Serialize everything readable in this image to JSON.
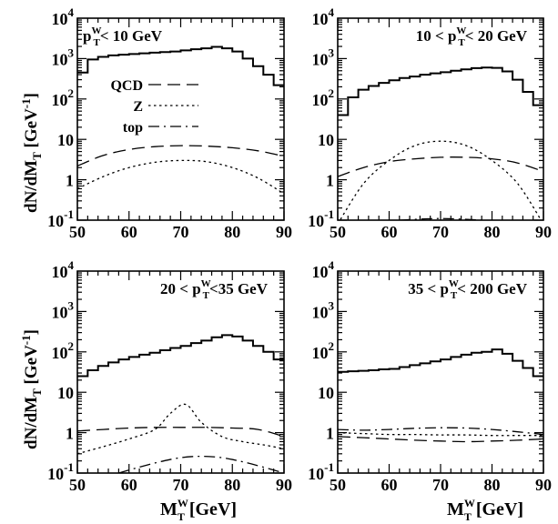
{
  "ylabel": "dN/dM",
  "ylabel_sub": "T",
  "ylabel_unit": "[GeV",
  "ylabel_unit_exp": "-1",
  "ylabel_unit_close": "]",
  "xlabel": "M",
  "xlabel_sup": "W",
  "xlabel_sub": "T",
  "xlabel_unit": "[GeV]",
  "legend": {
    "qcd": "QCD",
    "z": "Z",
    "top": "top"
  },
  "chart_data": [
    {
      "type": "line",
      "title_parts": [
        "p",
        "W",
        "T",
        "< 10 GeV"
      ],
      "xlim": [
        50,
        90
      ],
      "ylim": [
        0.1,
        10000
      ],
      "yscale": "log",
      "xticks": [
        50,
        60,
        70,
        80,
        90
      ],
      "yticks": [
        {
          "v": 10000,
          "b": "10",
          "e": "4"
        },
        {
          "v": 1000,
          "b": "10",
          "e": "3"
        },
        {
          "v": 100,
          "b": "10",
          "e": "2"
        },
        {
          "v": 10,
          "b": "10",
          "e": ""
        },
        {
          "v": 1,
          "b": "1",
          "e": ""
        },
        {
          "v": 0.1,
          "b": "10",
          "e": "-1"
        }
      ],
      "series": [
        {
          "key": "data",
          "style": "hist",
          "bin_edges": [
            50,
            52,
            54,
            56,
            58,
            60,
            62,
            64,
            66,
            68,
            70,
            72,
            74,
            76,
            78,
            80,
            82,
            84,
            86,
            88,
            90
          ],
          "values": [
            450,
            950,
            1100,
            1200,
            1250,
            1300,
            1350,
            1400,
            1450,
            1500,
            1600,
            1700,
            1800,
            1950,
            1800,
            1500,
            1000,
            650,
            400,
            220
          ]
        },
        {
          "key": "qcd",
          "style": "qcd",
          "x": [
            50,
            55,
            60,
            65,
            70,
            75,
            80,
            85,
            90
          ],
          "y": [
            2.2,
            4.0,
            5.6,
            6.6,
            7.0,
            6.8,
            6.2,
            5.2,
            3.8
          ]
        },
        {
          "key": "z",
          "style": "z",
          "x": [
            50,
            55,
            60,
            65,
            70,
            75,
            80,
            85,
            90
          ],
          "y": [
            0.6,
            1.2,
            2.0,
            2.7,
            3.0,
            2.8,
            2.0,
            1.1,
            0.45
          ]
        }
      ]
    },
    {
      "type": "line",
      "title_parts": [
        "10 < p",
        "W",
        "T",
        "< 20 GeV"
      ],
      "xlim": [
        50,
        90
      ],
      "ylim": [
        0.1,
        10000
      ],
      "yscale": "log",
      "xticks": [
        50,
        60,
        70,
        80,
        90
      ],
      "yticks": [
        {
          "v": 10000,
          "b": "10",
          "e": "4"
        },
        {
          "v": 1000,
          "b": "10",
          "e": "3"
        },
        {
          "v": 100,
          "b": "10",
          "e": "2"
        },
        {
          "v": 10,
          "b": "10",
          "e": ""
        },
        {
          "v": 1,
          "b": "1",
          "e": ""
        },
        {
          "v": 0.1,
          "b": "10",
          "e": "-1"
        }
      ],
      "series": [
        {
          "key": "data",
          "style": "hist",
          "bin_edges": [
            50,
            52,
            54,
            56,
            58,
            60,
            62,
            64,
            66,
            68,
            70,
            72,
            74,
            76,
            78,
            80,
            82,
            84,
            86,
            88,
            90
          ],
          "values": [
            40,
            110,
            170,
            210,
            250,
            290,
            330,
            360,
            400,
            430,
            460,
            500,
            540,
            580,
            600,
            590,
            480,
            300,
            150,
            70
          ]
        },
        {
          "key": "qcd",
          "style": "qcd",
          "x": [
            50,
            55,
            60,
            65,
            70,
            75,
            80,
            85,
            90
          ],
          "y": [
            1.2,
            2.0,
            2.8,
            3.3,
            3.6,
            3.6,
            3.3,
            2.6,
            1.6
          ]
        },
        {
          "key": "z",
          "style": "z",
          "x": [
            50,
            55,
            60,
            65,
            70,
            75,
            80,
            85,
            90
          ],
          "y": [
            0.08,
            0.8,
            3.0,
            7.0,
            9.0,
            7.0,
            3.0,
            0.8,
            0.08
          ]
        },
        {
          "key": "top",
          "style": "top",
          "x": [
            62,
            70,
            78
          ],
          "y": [
            0.1,
            0.11,
            0.1
          ]
        }
      ]
    },
    {
      "type": "line",
      "title_parts": [
        "20  < p",
        "W",
        "T",
        "<35 GeV"
      ],
      "xlim": [
        50,
        90
      ],
      "ylim": [
        0.1,
        10000
      ],
      "yscale": "log",
      "xticks": [
        50,
        60,
        70,
        80,
        90
      ],
      "yticks": [
        {
          "v": 10000,
          "b": "10",
          "e": "4"
        },
        {
          "v": 1000,
          "b": "10",
          "e": "3"
        },
        {
          "v": 100,
          "b": "10",
          "e": "2"
        },
        {
          "v": 10,
          "b": "10",
          "e": ""
        },
        {
          "v": 1,
          "b": "1",
          "e": ""
        },
        {
          "v": 0.1,
          "b": "10",
          "e": "-1"
        }
      ],
      "series": [
        {
          "key": "data",
          "style": "hist",
          "bin_edges": [
            50,
            52,
            54,
            56,
            58,
            60,
            62,
            64,
            66,
            68,
            70,
            72,
            74,
            76,
            78,
            80,
            82,
            84,
            86,
            88,
            90
          ],
          "values": [
            25,
            35,
            45,
            55,
            65,
            75,
            85,
            95,
            110,
            125,
            140,
            165,
            190,
            230,
            260,
            240,
            190,
            140,
            100,
            65
          ]
        },
        {
          "key": "qcd",
          "style": "qcd",
          "x": [
            50,
            55,
            60,
            65,
            70,
            75,
            80,
            85,
            90
          ],
          "y": [
            1.1,
            1.2,
            1.3,
            1.35,
            1.35,
            1.35,
            1.3,
            1.2,
            0.8
          ]
        },
        {
          "key": "z",
          "style": "z",
          "x": [
            50,
            55,
            60,
            65,
            68,
            71,
            74,
            78,
            82,
            86,
            90
          ],
          "y": [
            0.3,
            0.45,
            0.7,
            1.2,
            3.0,
            5.0,
            1.8,
            0.8,
            0.6,
            0.5,
            0.4
          ]
        },
        {
          "key": "top",
          "style": "top",
          "x": [
            58,
            62,
            66,
            70,
            74,
            78,
            82,
            86,
            90
          ],
          "y": [
            0.1,
            0.14,
            0.19,
            0.24,
            0.26,
            0.24,
            0.19,
            0.14,
            0.1
          ]
        }
      ]
    },
    {
      "type": "line",
      "title_parts": [
        "35 < p",
        "W",
        "T",
        "< 200 GeV"
      ],
      "xlim": [
        50,
        90
      ],
      "ylim": [
        0.1,
        10000
      ],
      "yscale": "log",
      "xticks": [
        50,
        60,
        70,
        80,
        90
      ],
      "yticks": [
        {
          "v": 10000,
          "b": "10",
          "e": "4"
        },
        {
          "v": 1000,
          "b": "10",
          "e": "3"
        },
        {
          "v": 100,
          "b": "10",
          "e": "2"
        },
        {
          "v": 10,
          "b": "10",
          "e": ""
        },
        {
          "v": 1,
          "b": "1",
          "e": ""
        },
        {
          "v": 0.1,
          "b": "10",
          "e": "-1"
        }
      ],
      "series": [
        {
          "key": "data",
          "style": "hist",
          "bin_edges": [
            50,
            52,
            54,
            56,
            58,
            60,
            62,
            64,
            66,
            68,
            70,
            72,
            74,
            76,
            78,
            80,
            82,
            84,
            86,
            88,
            90
          ],
          "values": [
            32,
            33,
            34,
            35,
            37,
            38,
            42,
            47,
            52,
            58,
            65,
            75,
            85,
            95,
            100,
            115,
            90,
            60,
            40,
            25
          ]
        },
        {
          "key": "qcd",
          "style": "qcd",
          "x": [
            50,
            55,
            60,
            65,
            70,
            75,
            80,
            85,
            90
          ],
          "y": [
            0.8,
            0.75,
            0.7,
            0.65,
            0.62,
            0.6,
            0.62,
            0.65,
            0.7
          ]
        },
        {
          "key": "z",
          "style": "z",
          "x": [
            50,
            55,
            60,
            65,
            70,
            75,
            80,
            85,
            90
          ],
          "y": [
            1.0,
            0.95,
            0.9,
            0.9,
            0.88,
            0.88,
            0.85,
            0.85,
            0.85
          ]
        },
        {
          "key": "top",
          "style": "top",
          "x": [
            50,
            55,
            60,
            65,
            70,
            75,
            80,
            85,
            90
          ],
          "y": [
            1.2,
            1.15,
            1.2,
            1.28,
            1.32,
            1.3,
            1.2,
            1.05,
            0.9
          ]
        }
      ]
    }
  ]
}
